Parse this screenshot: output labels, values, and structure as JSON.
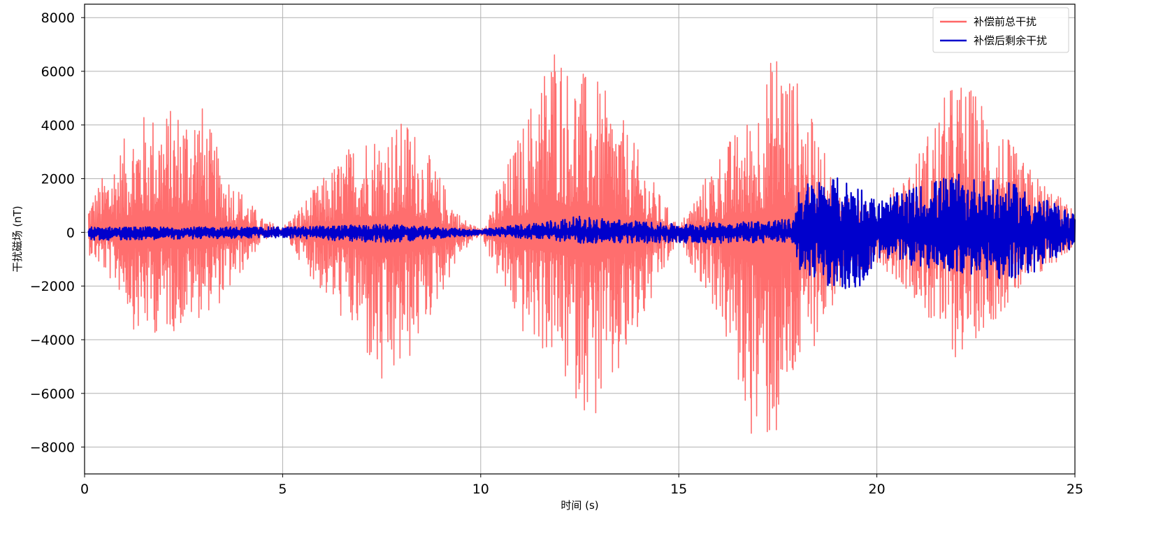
{
  "chart_data": {
    "type": "line",
    "xlabel": "时间 (s)",
    "ylabel": "干扰磁场 (nT)",
    "xlim": [
      0,
      25
    ],
    "ylim": [
      -9000,
      8500
    ],
    "xticks": [
      0,
      5,
      10,
      15,
      20,
      25
    ],
    "yticks": [
      -8000,
      -6000,
      -4000,
      -2000,
      0,
      2000,
      4000,
      6000,
      8000
    ],
    "grid": true,
    "legend_position": "top-right",
    "series": [
      {
        "name": "补偿前总干扰",
        "color": "#ff6666",
        "envelope": [
          {
            "x": 0.1,
            "max": 1200,
            "min": -800
          },
          {
            "x": 1.0,
            "max": 3500,
            "min": -2500
          },
          {
            "x": 1.3,
            "max": 4400,
            "min": -3900
          },
          {
            "x": 2.3,
            "max": 4700,
            "min": -3700
          },
          {
            "x": 2.9,
            "max": 5100,
            "min": -3200
          },
          {
            "x": 3.5,
            "max": 2500,
            "min": -2600
          },
          {
            "x": 4.5,
            "max": 500,
            "min": -300
          },
          {
            "x": 5.0,
            "max": 200,
            "min": -100
          },
          {
            "x": 6.0,
            "max": 2000,
            "min": -2300
          },
          {
            "x": 7.0,
            "max": 3800,
            "min": -4300
          },
          {
            "x": 7.5,
            "max": 3800,
            "min": -6400
          },
          {
            "x": 8.2,
            "max": 4300,
            "min": -4900
          },
          {
            "x": 9.5,
            "max": 600,
            "min": -800
          },
          {
            "x": 10.0,
            "max": 100,
            "min": -100
          },
          {
            "x": 11.0,
            "max": 3800,
            "min": -3800
          },
          {
            "x": 11.9,
            "max": 7700,
            "min": -4900
          },
          {
            "x": 12.2,
            "max": 6300,
            "min": -6000
          },
          {
            "x": 12.9,
            "max": 5800,
            "min": -7100
          },
          {
            "x": 13.5,
            "max": 4500,
            "min": -5700
          },
          {
            "x": 14.5,
            "max": 1500,
            "min": -2000
          },
          {
            "x": 15.0,
            "max": 200,
            "min": -300
          },
          {
            "x": 16.0,
            "max": 3000,
            "min": -3200
          },
          {
            "x": 16.9,
            "max": 4600,
            "min": -8000
          },
          {
            "x": 17.5,
            "max": 7300,
            "min": -8000
          },
          {
            "x": 18.0,
            "max": 5700,
            "min": -5500
          },
          {
            "x": 19.0,
            "max": 1700,
            "min": -2500
          },
          {
            "x": 20.0,
            "max": 800,
            "min": -1100
          },
          {
            "x": 21.0,
            "max": 2900,
            "min": -2500
          },
          {
            "x": 21.6,
            "max": 4800,
            "min": -4100
          },
          {
            "x": 22.0,
            "max": 5900,
            "min": -4800
          },
          {
            "x": 22.8,
            "max": 4900,
            "min": -3500
          },
          {
            "x": 23.6,
            "max": 2800,
            "min": -2400
          },
          {
            "x": 25.0,
            "max": 800,
            "min": -500
          }
        ]
      },
      {
        "name": "补偿后剩余干扰",
        "color": "#0000cc",
        "envelope": [
          {
            "x": 0.1,
            "max": 200,
            "min": -300
          },
          {
            "x": 5.0,
            "max": 200,
            "min": -200
          },
          {
            "x": 7.5,
            "max": 300,
            "min": -400
          },
          {
            "x": 10.0,
            "max": 100,
            "min": -100
          },
          {
            "x": 12.5,
            "max": 600,
            "min": -400
          },
          {
            "x": 15.0,
            "max": 300,
            "min": -400
          },
          {
            "x": 17.9,
            "max": 500,
            "min": -400
          },
          {
            "x": 18.0,
            "max": 1800,
            "min": -1400
          },
          {
            "x": 18.8,
            "max": 2100,
            "min": -2000
          },
          {
            "x": 19.5,
            "max": 1900,
            "min": -2400
          },
          {
            "x": 20.0,
            "max": 1200,
            "min": -1000
          },
          {
            "x": 21.9,
            "max": 2200,
            "min": -1500
          },
          {
            "x": 23.5,
            "max": 1800,
            "min": -1900
          },
          {
            "x": 25.0,
            "max": 700,
            "min": -600
          }
        ]
      }
    ]
  }
}
